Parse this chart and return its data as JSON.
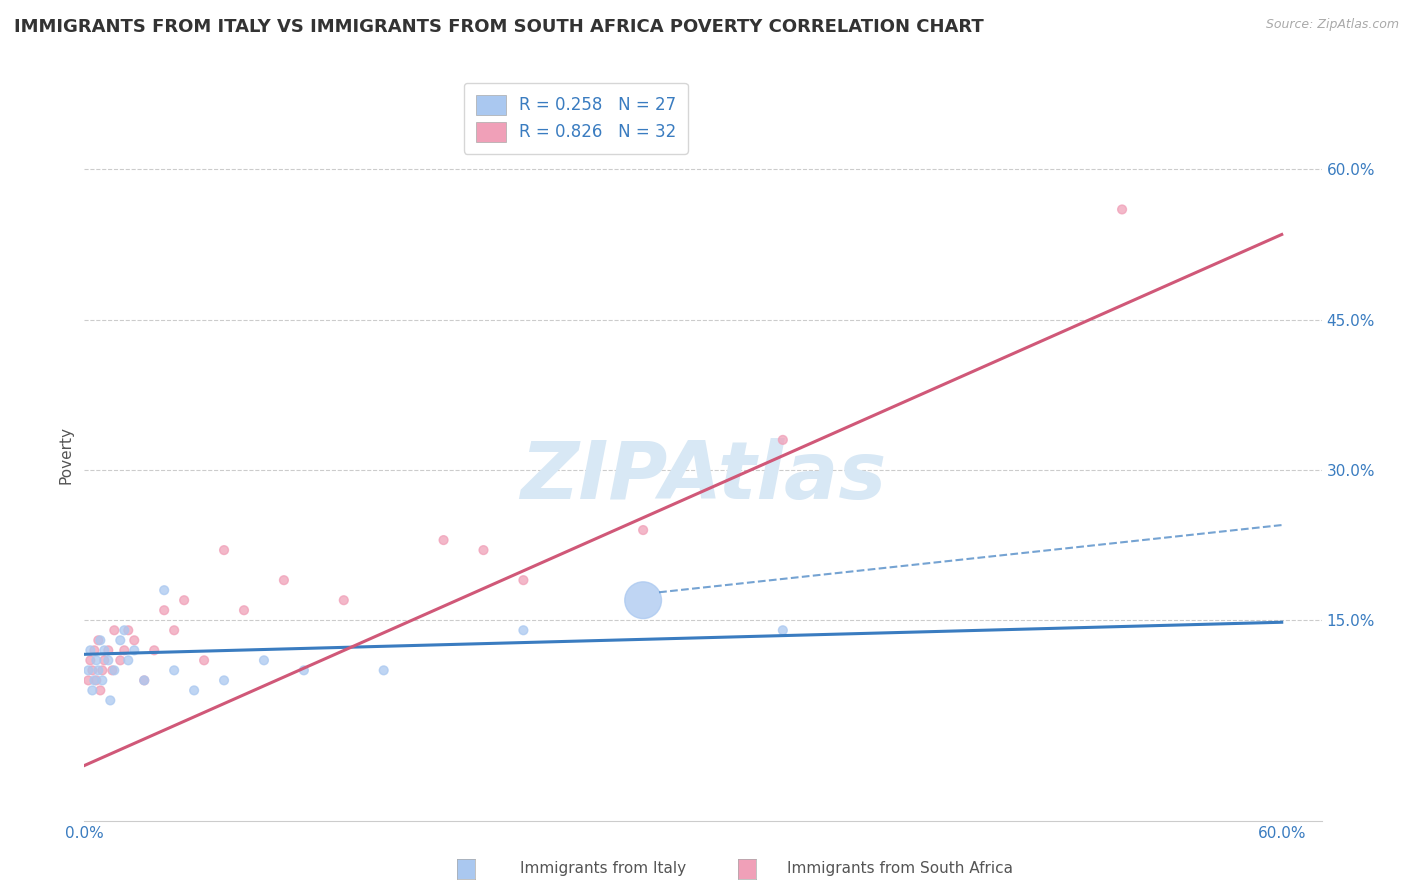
{
  "title": "IMMIGRANTS FROM ITALY VS IMMIGRANTS FROM SOUTH AFRICA POVERTY CORRELATION CHART",
  "source": "Source: ZipAtlas.com",
  "ylabel": "Poverty",
  "xlim": [
    0.0,
    0.62
  ],
  "ylim": [
    -0.05,
    0.68
  ],
  "yticks_right": [
    0.15,
    0.3,
    0.45,
    0.6
  ],
  "yticks_right_labels": [
    "15.0%",
    "30.0%",
    "45.0%",
    "60.0%"
  ],
  "italy_scatter_color": "#aac8f0",
  "italy_line_color": "#3a7cc0",
  "south_africa_scatter_color": "#f0a0b8",
  "south_africa_line_color": "#d05878",
  "italy_R": 0.258,
  "italy_N": 27,
  "south_africa_R": 0.826,
  "south_africa_N": 32,
  "watermark": "ZIPAtlas",
  "background_color": "#ffffff",
  "grid_color": "#cccccc",
  "legend_text_color": "#3a7cc0",
  "italy_x": [
    0.002,
    0.003,
    0.004,
    0.005,
    0.006,
    0.007,
    0.008,
    0.009,
    0.01,
    0.012,
    0.013,
    0.015,
    0.018,
    0.02,
    0.022,
    0.025,
    0.03,
    0.04,
    0.045,
    0.055,
    0.07,
    0.09,
    0.11,
    0.15,
    0.22,
    0.28,
    0.35
  ],
  "italy_y": [
    0.1,
    0.12,
    0.08,
    0.09,
    0.11,
    0.1,
    0.13,
    0.09,
    0.12,
    0.11,
    0.07,
    0.1,
    0.13,
    0.14,
    0.11,
    0.12,
    0.09,
    0.18,
    0.1,
    0.08,
    0.09,
    0.11,
    0.1,
    0.1,
    0.14,
    0.17,
    0.14
  ],
  "italy_sizes": [
    40,
    40,
    40,
    40,
    40,
    40,
    40,
    40,
    40,
    40,
    40,
    40,
    40,
    40,
    40,
    40,
    40,
    40,
    40,
    40,
    40,
    40,
    40,
    40,
    40,
    700,
    40
  ],
  "south_africa_x": [
    0.002,
    0.003,
    0.004,
    0.005,
    0.006,
    0.007,
    0.008,
    0.009,
    0.01,
    0.012,
    0.014,
    0.015,
    0.018,
    0.02,
    0.022,
    0.025,
    0.03,
    0.035,
    0.04,
    0.045,
    0.05,
    0.06,
    0.07,
    0.08,
    0.1,
    0.13,
    0.18,
    0.2,
    0.22,
    0.28,
    0.35,
    0.52
  ],
  "south_africa_y": [
    0.09,
    0.11,
    0.1,
    0.12,
    0.09,
    0.13,
    0.08,
    0.1,
    0.11,
    0.12,
    0.1,
    0.14,
    0.11,
    0.12,
    0.14,
    0.13,
    0.09,
    0.12,
    0.16,
    0.14,
    0.17,
    0.11,
    0.22,
    0.16,
    0.19,
    0.17,
    0.23,
    0.22,
    0.19,
    0.24,
    0.33,
    0.56
  ],
  "south_africa_sizes": [
    40,
    40,
    40,
    40,
    40,
    40,
    40,
    40,
    40,
    40,
    40,
    40,
    40,
    40,
    40,
    40,
    40,
    40,
    40,
    40,
    40,
    40,
    40,
    40,
    40,
    40,
    40,
    40,
    40,
    40,
    40,
    40
  ],
  "italy_trend_x0": 0.0,
  "italy_trend_x1": 0.6,
  "italy_trend_y0": 0.116,
  "italy_trend_y1": 0.148,
  "italy_trend_dashed_y1": 0.245,
  "south_africa_trend_x0": 0.0,
  "south_africa_trend_x1": 0.6,
  "south_africa_trend_y0": 0.005,
  "south_africa_trend_y1": 0.535
}
